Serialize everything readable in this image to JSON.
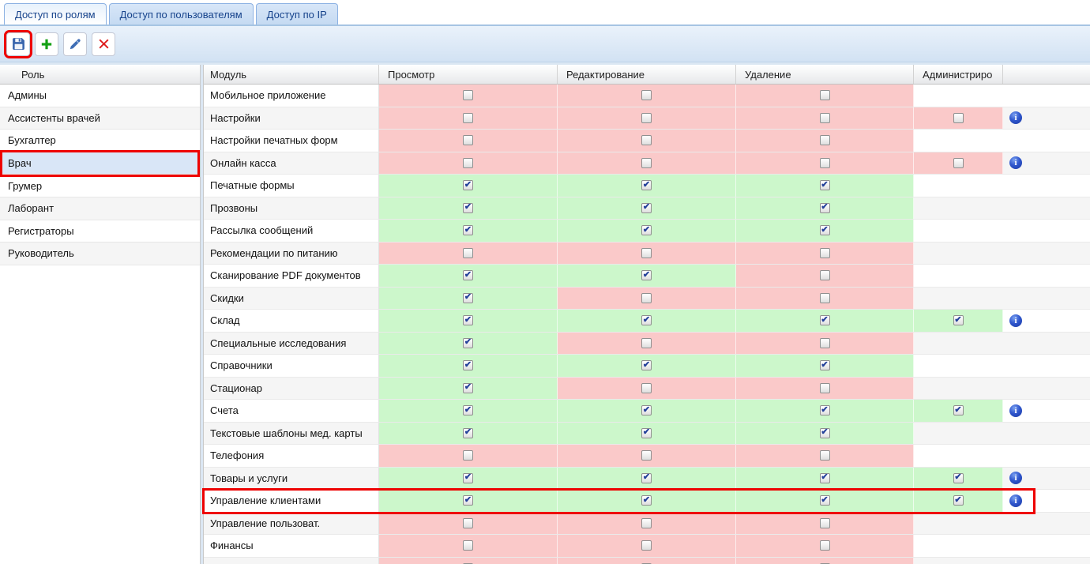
{
  "tabs": [
    {
      "id": "roles",
      "label": "Доступ по ролям",
      "active": true
    },
    {
      "id": "users",
      "label": "Доступ по пользователям",
      "active": false
    },
    {
      "id": "ip",
      "label": "Доступ по IP",
      "active": false
    }
  ],
  "toolbar": {
    "buttons": [
      {
        "id": "save",
        "icon": "floppy-icon",
        "annotated": true
      },
      {
        "id": "add",
        "icon": "plus-icon",
        "annotated": false
      },
      {
        "id": "edit",
        "icon": "pencil-icon",
        "annotated": false
      },
      {
        "id": "delete",
        "icon": "x-icon",
        "annotated": false
      }
    ]
  },
  "roles": {
    "header": "Роль",
    "items": [
      {
        "name": "Админы",
        "selected": false
      },
      {
        "name": "Ассистенты врачей",
        "selected": false
      },
      {
        "name": "Бухгалтер",
        "selected": false
      },
      {
        "name": "Врач",
        "selected": true,
        "annotated": true
      },
      {
        "name": "Грумер",
        "selected": false
      },
      {
        "name": "Лаборант",
        "selected": false
      },
      {
        "name": "Регистраторы",
        "selected": false
      },
      {
        "name": "Руководитель",
        "selected": false
      }
    ]
  },
  "grid": {
    "columns": [
      "Модуль",
      "Просмотр",
      "Редактирование",
      "Удаление",
      "Администриро",
      ""
    ],
    "colors": {
      "allowed": "#ccf7cb",
      "denied": "#fac9c9",
      "selected_role": "#d9e6f7",
      "annotation": "#ee0000",
      "info_icon": "#2b50c4"
    },
    "rows": [
      {
        "module": "Мобильное приложение",
        "perms": [
          false,
          false,
          false
        ],
        "info": false,
        "annotated": false
      },
      {
        "module": "Настройки",
        "perms": [
          false,
          false,
          false,
          false
        ],
        "info": true,
        "annotated": false
      },
      {
        "module": "Настройки печатных форм",
        "perms": [
          false,
          false,
          false
        ],
        "info": false,
        "annotated": false
      },
      {
        "module": "Онлайн касса",
        "perms": [
          false,
          false,
          false,
          false
        ],
        "info": true,
        "annotated": false
      },
      {
        "module": "Печатные формы",
        "perms": [
          true,
          true,
          true
        ],
        "info": false,
        "annotated": false
      },
      {
        "module": "Прозвоны",
        "perms": [
          true,
          true,
          true
        ],
        "info": false,
        "annotated": false
      },
      {
        "module": "Рассылка сообщений",
        "perms": [
          true,
          true,
          true
        ],
        "info": false,
        "annotated": false
      },
      {
        "module": "Рекомендации по питанию",
        "perms": [
          false,
          false,
          false
        ],
        "info": false,
        "annotated": false
      },
      {
        "module": "Сканирование PDF документов",
        "perms": [
          true,
          true,
          false
        ],
        "info": false,
        "annotated": false
      },
      {
        "module": "Скидки",
        "perms": [
          true,
          false,
          false
        ],
        "info": false,
        "annotated": false
      },
      {
        "module": "Склад",
        "perms": [
          true,
          true,
          true,
          true
        ],
        "info": true,
        "annotated": false
      },
      {
        "module": "Специальные исследования",
        "perms": [
          true,
          false,
          false
        ],
        "info": false,
        "annotated": false
      },
      {
        "module": "Справочники",
        "perms": [
          true,
          true,
          true
        ],
        "info": false,
        "annotated": false
      },
      {
        "module": "Стационар",
        "perms": [
          true,
          false,
          false
        ],
        "info": false,
        "annotated": false
      },
      {
        "module": "Счета",
        "perms": [
          true,
          true,
          true,
          true
        ],
        "info": true,
        "annotated": false
      },
      {
        "module": "Текстовые шаблоны мед. карты",
        "perms": [
          true,
          true,
          true
        ],
        "info": false,
        "annotated": false
      },
      {
        "module": "Телефония",
        "perms": [
          false,
          false,
          false
        ],
        "info": false,
        "annotated": false
      },
      {
        "module": "Товары и услуги",
        "perms": [
          true,
          true,
          true,
          true
        ],
        "info": true,
        "annotated": false
      },
      {
        "module": "Управление клиентами",
        "perms": [
          true,
          true,
          true,
          true
        ],
        "info": true,
        "annotated": true
      },
      {
        "module": "Управление пользоват.",
        "perms": [
          false,
          false,
          false
        ],
        "info": false,
        "annotated": false
      },
      {
        "module": "Финансы",
        "perms": [
          false,
          false,
          false
        ],
        "info": false,
        "annotated": false
      },
      {
        "module": "",
        "perms": [
          false,
          false,
          false
        ],
        "info": false,
        "annotated": false
      }
    ]
  }
}
